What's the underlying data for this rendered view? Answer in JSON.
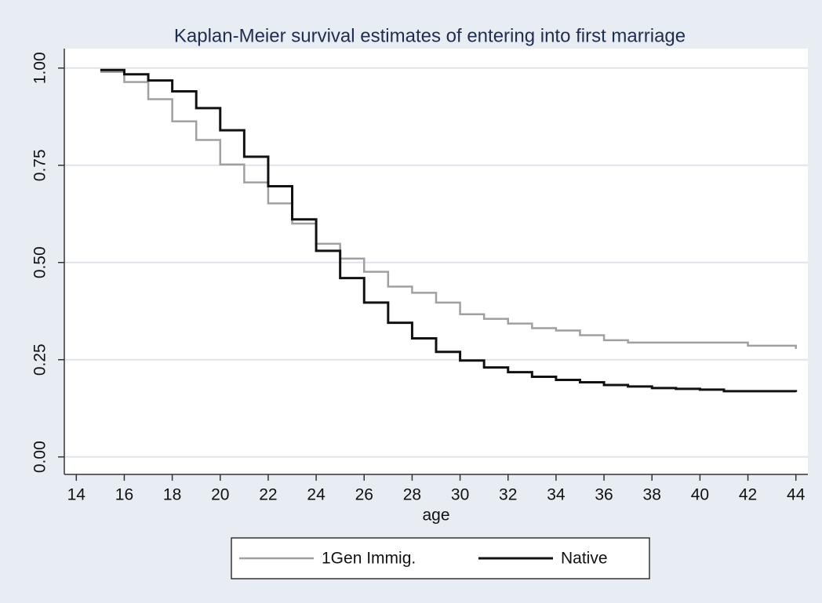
{
  "chart_data": {
    "type": "step",
    "title": "Kaplan-Meier survival estimates of entering into first marriage",
    "x_label": "age",
    "x": [
      15,
      16,
      17,
      18,
      19,
      20,
      21,
      22,
      23,
      24,
      25,
      26,
      27,
      28,
      29,
      30,
      31,
      32,
      33,
      34,
      35,
      36,
      37,
      38,
      39,
      40,
      41,
      42,
      43,
      44
    ],
    "series": [
      {
        "name": "1Gen Immig.",
        "color": "#a0a0a0",
        "values": [
          0.99,
          0.964,
          0.92,
          0.863,
          0.815,
          0.752,
          0.706,
          0.652,
          0.6,
          0.548,
          0.51,
          0.476,
          0.438,
          0.422,
          0.397,
          0.367,
          0.355,
          0.343,
          0.331,
          0.325,
          0.313,
          0.3,
          0.294,
          0.294,
          0.294,
          0.294,
          0.294,
          0.286,
          0.286,
          0.278
        ]
      },
      {
        "name": "Native",
        "color": "#111111",
        "values": [
          0.995,
          0.984,
          0.968,
          0.94,
          0.897,
          0.84,
          0.772,
          0.696,
          0.611,
          0.53,
          0.46,
          0.397,
          0.345,
          0.305,
          0.27,
          0.248,
          0.23,
          0.218,
          0.206,
          0.198,
          0.192,
          0.185,
          0.181,
          0.177,
          0.175,
          0.173,
          0.169,
          0.169,
          0.169,
          0.167
        ]
      }
    ],
    "xlim": [
      13.5,
      44.5
    ],
    "xticks": [
      14,
      16,
      18,
      20,
      22,
      24,
      26,
      28,
      30,
      32,
      34,
      36,
      38,
      40,
      42,
      44
    ],
    "ylim": [
      -0.045,
      1.05
    ],
    "yticks": [
      {
        "value": 0,
        "label": "0.00"
      },
      {
        "value": 0.25,
        "label": "0.25"
      },
      {
        "value": 0.5,
        "label": "0.50"
      },
      {
        "value": 0.75,
        "label": "0.75"
      },
      {
        "value": 1,
        "label": "1.00"
      }
    ],
    "grid": true,
    "legend": "bottom"
  }
}
